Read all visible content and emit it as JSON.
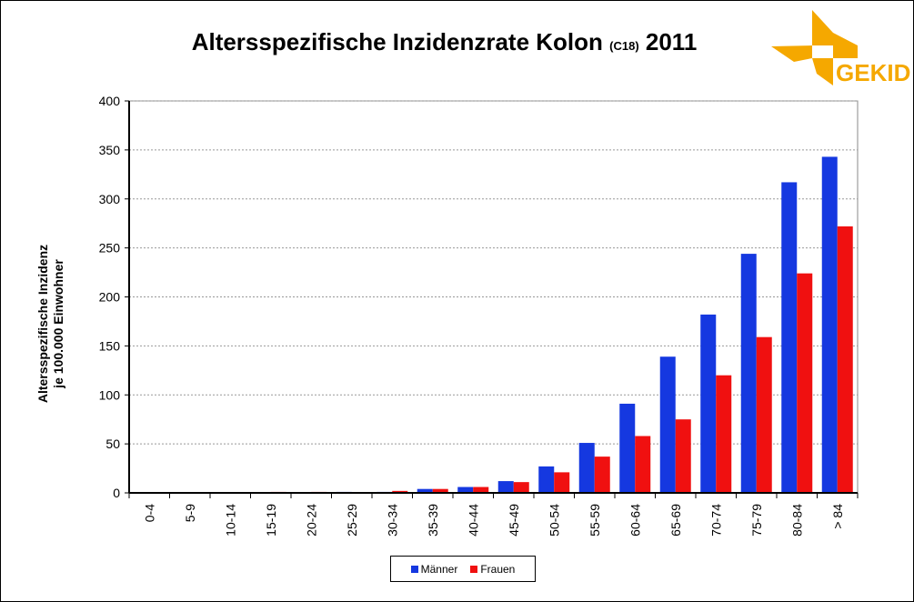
{
  "chart_data": {
    "type": "bar",
    "title": "Altersspezifische Inzidenzrate Kolon",
    "title_code": "(C18)",
    "title_year": "2011",
    "ylabel": [
      "Altersspezifische  Inzidenz",
      "je 100.000 Einwohner"
    ],
    "xlabel": "",
    "ylim": [
      0,
      400
    ],
    "yticks": [
      0,
      50,
      100,
      150,
      200,
      250,
      300,
      350,
      400
    ],
    "grid": true,
    "legend_position": "bottom",
    "categories": [
      "0-4",
      "5-9",
      "10-14",
      "15-19",
      "20-24",
      "25-29",
      "30-34",
      "35-39",
      "40-44",
      "45-49",
      "50-54",
      "55-59",
      "60-64",
      "65-69",
      "70-74",
      "75-79",
      "80-84",
      "> 84"
    ],
    "series": [
      {
        "name": "Männer",
        "color": "#1538E0",
        "values": [
          0,
          0,
          0,
          0,
          0,
          1,
          1,
          4,
          6,
          12,
          27,
          51,
          91,
          139,
          182,
          244,
          317,
          343
        ]
      },
      {
        "name": "Frauen",
        "color": "#F01010",
        "values": [
          0,
          0,
          0,
          1,
          1,
          0,
          2,
          4,
          6,
          11,
          21,
          37,
          58,
          75,
          120,
          159,
          224,
          272
        ]
      }
    ]
  },
  "logo": {
    "text": "GEKID",
    "color": "#F5A800"
  }
}
